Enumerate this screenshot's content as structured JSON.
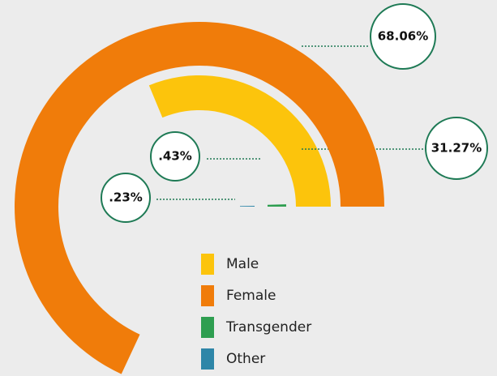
{
  "chart_data": {
    "type": "radial_bar",
    "categories": [
      "Male",
      "Female",
      "Transgender",
      "Other"
    ],
    "values": [
      31.27,
      68.06,
      0.43,
      0.23
    ],
    "value_labels": [
      "31.27%",
      "68.06%",
      ".43%",
      ".23%"
    ],
    "colors": [
      "#fcc40c",
      "#f07c0a",
      "#2e9e50",
      "#2e86a8"
    ]
  }
}
